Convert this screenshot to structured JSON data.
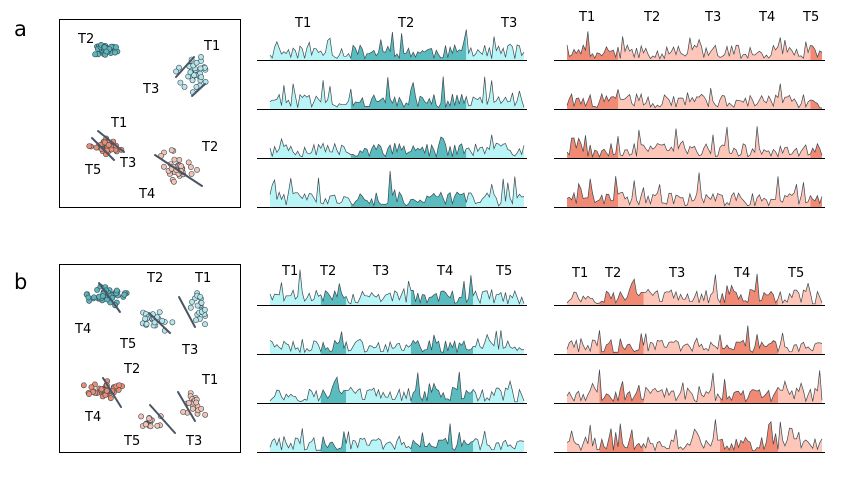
{
  "figure": {
    "panels": [
      {
        "letter": "a",
        "scatter": {
          "clusters": [
            {
              "label": "T2",
              "color": "#5bb5bd"
            },
            {
              "label": "T1",
              "color": "#b6e6ec"
            },
            {
              "label": "T3",
              "color": "#b6e6ec"
            },
            {
              "label": "T1",
              "color": "#ee8c72"
            },
            {
              "label": "T5",
              "color": "#ee8c72"
            },
            {
              "label": "T3",
              "color": "#ee8c72"
            },
            {
              "label": "T2",
              "color": "#f6c2b3"
            },
            {
              "label": "T4",
              "color": "#f6c2b3"
            }
          ]
        },
        "cyan_tracks": {
          "segment_labels": [
            "T1",
            "T2",
            "T3"
          ],
          "rows": 4,
          "fills": [
            "#b9f4f6",
            "#5bbcbf",
            "#b9f4f6"
          ]
        },
        "salmon_tracks": {
          "segment_labels": [
            "T1",
            "T2",
            "T3",
            "T4",
            "T5"
          ],
          "rows": 4,
          "fills": [
            "#f08a74",
            "#fdc6b8",
            "#fdc6b8",
            "#fdc6b8",
            "#f08a74"
          ]
        }
      },
      {
        "letter": "b",
        "scatter": {
          "clusters": [
            {
              "label": "T2",
              "color": "#5bb5bd"
            },
            {
              "label": "T1",
              "color": "#b6e6ec"
            },
            {
              "label": "T4",
              "color": "#5bb5bd"
            },
            {
              "label": "T5",
              "color": "#b6e6ec"
            },
            {
              "label": "T3",
              "color": "#b6e6ec"
            },
            {
              "label": "T2",
              "color": "#ee8c72"
            },
            {
              "label": "T1",
              "color": "#f6c2b3"
            },
            {
              "label": "T4",
              "color": "#ee8c72"
            },
            {
              "label": "T5",
              "color": "#f6c2b3"
            },
            {
              "label": "T3",
              "color": "#f6c2b3"
            }
          ]
        },
        "cyan_tracks": {
          "segment_labels": [
            "T1",
            "T2",
            "T3",
            "T4",
            "T5"
          ],
          "rows": 4,
          "fills": [
            "#b9f4f6",
            "#5bbcbf",
            "#b9f4f6",
            "#5bbcbf",
            "#b9f4f6"
          ]
        },
        "salmon_tracks": {
          "segment_labels": [
            "T1",
            "T2",
            "T3",
            "T4",
            "T5"
          ],
          "rows": 4,
          "fills": [
            "#fdc6b8",
            "#f08a74",
            "#fdc6b8",
            "#f08a74",
            "#fdc6b8"
          ]
        }
      }
    ],
    "colors": {
      "cyan_light": "#b9f4f6",
      "cyan_dark": "#5bbcbf",
      "salmon_light": "#fdc6b8",
      "salmon_dark": "#f08a74",
      "trace": "#3d4a52",
      "divider": "#4a5563",
      "axis": "#000000"
    }
  }
}
